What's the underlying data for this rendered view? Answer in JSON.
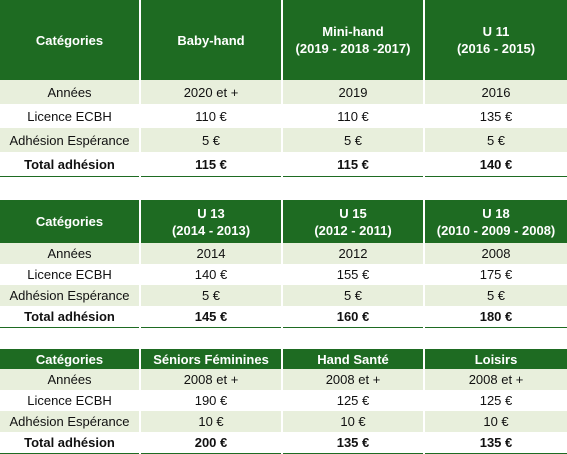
{
  "tables": [
    {
      "header": [
        {
          "name": "Catégories",
          "years": ""
        },
        {
          "name": "Baby-hand",
          "years": ""
        },
        {
          "name": "Mini-hand",
          "years": "(2019 - 2018 -2017)"
        },
        {
          "name": "U 11",
          "years": "(2016 - 2015)"
        }
      ],
      "rows": [
        {
          "label": "Années",
          "values": [
            "2020 et +",
            "2019",
            "2016"
          ]
        },
        {
          "label": "Licence ECBH",
          "values": [
            "110 €",
            "110 €",
            "135 €"
          ]
        },
        {
          "label": "Adhésion Espérance",
          "values": [
            "5 €",
            "5 €",
            "5 €"
          ]
        },
        {
          "label": "Total adhésion",
          "values": [
            "115 €",
            "115 €",
            "140 €"
          ]
        }
      ]
    },
    {
      "header": [
        {
          "name": "Catégories",
          "years": ""
        },
        {
          "name": "U 13",
          "years": "(2014 - 2013)"
        },
        {
          "name": "U 15",
          "years": "(2012 - 2011)"
        },
        {
          "name": "U 18",
          "years": "(2010 - 2009 - 2008)"
        }
      ],
      "rows": [
        {
          "label": "Années",
          "values": [
            "2014",
            "2012",
            "2008"
          ]
        },
        {
          "label": "Licence ECBH",
          "values": [
            "140 €",
            "155 €",
            "175 €"
          ]
        },
        {
          "label": "Adhésion Espérance",
          "values": [
            "5 €",
            "5 €",
            "5 €"
          ]
        },
        {
          "label": "Total adhésion",
          "values": [
            "145 €",
            "160 €",
            "180 €"
          ]
        }
      ]
    },
    {
      "header": [
        {
          "name": "Catégories",
          "years": ""
        },
        {
          "name": "Séniors Féminines",
          "years": ""
        },
        {
          "name": "Hand Santé",
          "years": ""
        },
        {
          "name": "Loisirs",
          "years": ""
        }
      ],
      "rows": [
        {
          "label": "Années",
          "values": [
            "2008 et +",
            "2008 et +",
            "2008 et +"
          ]
        },
        {
          "label": "Licence ECBH",
          "values": [
            "190 €",
            "125 €",
            "125 €"
          ]
        },
        {
          "label": "Adhésion Espérance",
          "values": [
            "10 €",
            "10 €",
            "10 €"
          ]
        },
        {
          "label": "Total adhésion",
          "values": [
            "200 €",
            "135 €",
            "135 €"
          ]
        }
      ]
    }
  ]
}
